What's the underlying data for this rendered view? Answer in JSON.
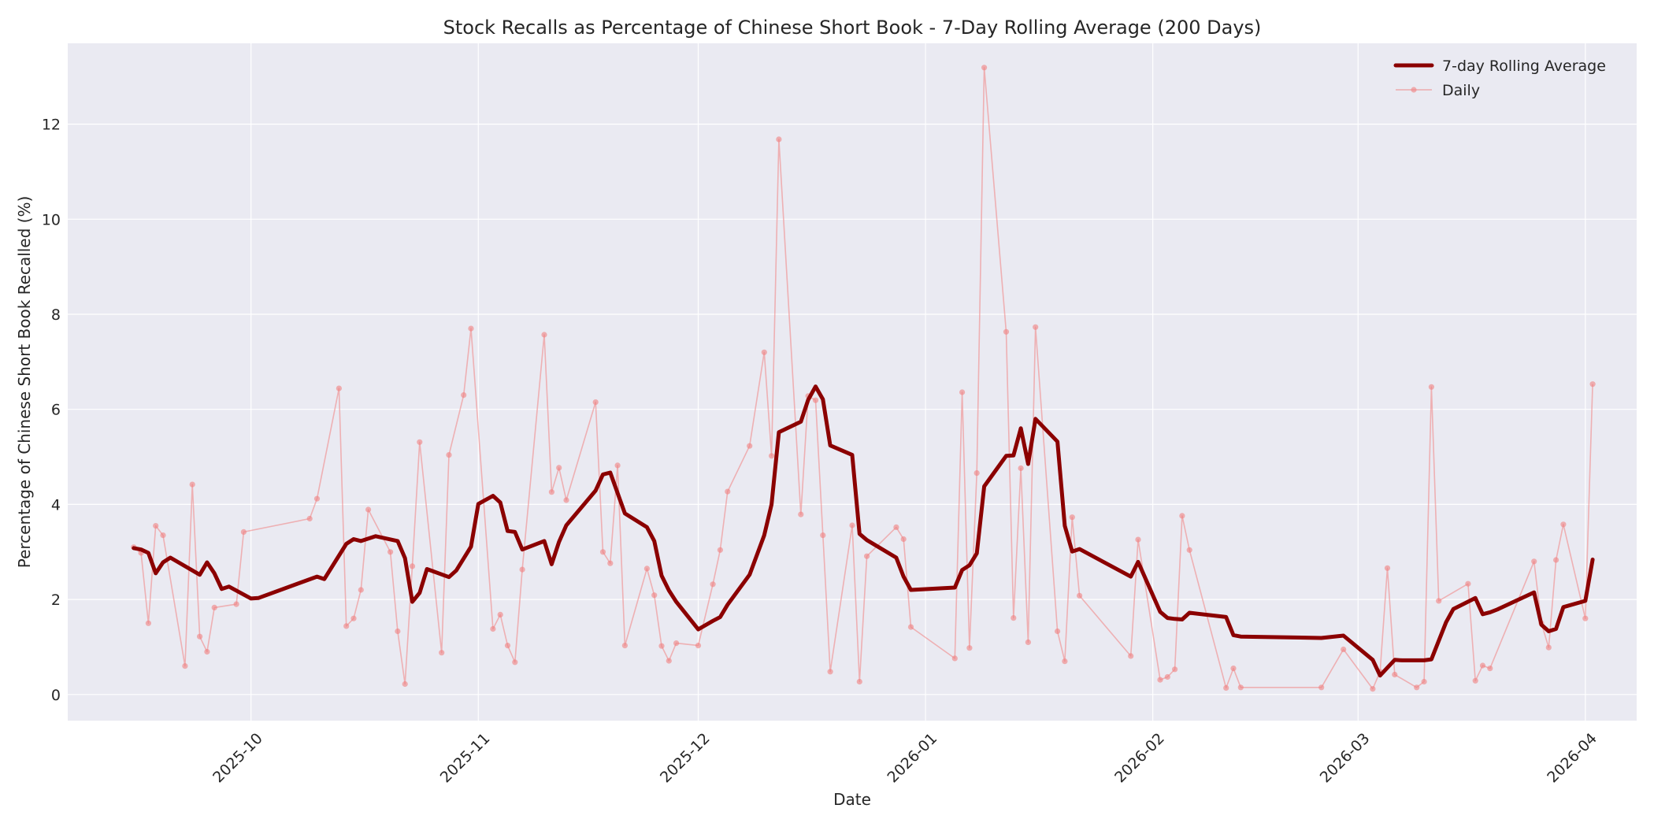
{
  "chart_data": {
    "type": "line",
    "title": "Stock Recalls as Percentage of Chinese Short Book - 7-Day Rolling Average (200 Days)",
    "xlabel": "Date",
    "ylabel": "Percentage of Chinese Short Book Recalled (%)",
    "x_range": [
      "2025-09-06",
      "2026-04-08"
    ],
    "ylim": [
      -0.55,
      13.7
    ],
    "x_ticks": [
      "2025-10",
      "2025-11",
      "2025-12",
      "2026-01",
      "2026-02",
      "2026-03",
      "2026-04"
    ],
    "y_ticks": [
      0,
      2,
      4,
      6,
      8,
      10,
      12
    ],
    "grid": true,
    "legend_position": "top-right",
    "colors": {
      "rolling": "#8b0000",
      "daily": "#f08080",
      "background": "#eaeaf2",
      "grid": "#ffffff"
    },
    "series": [
      {
        "name": "7-day Rolling Average",
        "style": "thick-line",
        "points": [
          [
            "2025-09-15",
            3.08
          ],
          [
            "2025-09-16",
            3.05
          ],
          [
            "2025-09-17",
            2.98
          ],
          [
            "2025-09-18",
            2.55
          ],
          [
            "2025-09-19",
            2.78
          ],
          [
            "2025-09-20",
            2.88
          ],
          [
            "2025-09-24",
            2.52
          ],
          [
            "2025-09-25",
            2.78
          ],
          [
            "2025-09-26",
            2.55
          ],
          [
            "2025-09-27",
            2.22
          ],
          [
            "2025-09-28",
            2.27
          ],
          [
            "2025-10-01",
            2.02
          ],
          [
            "2025-10-02",
            2.03
          ],
          [
            "2025-10-10",
            2.48
          ],
          [
            "2025-10-11",
            2.43
          ],
          [
            "2025-10-14",
            3.17
          ],
          [
            "2025-10-15",
            3.27
          ],
          [
            "2025-10-16",
            3.23
          ],
          [
            "2025-10-18",
            3.33
          ],
          [
            "2025-10-21",
            3.23
          ],
          [
            "2025-10-22",
            2.87
          ],
          [
            "2025-10-23",
            1.95
          ],
          [
            "2025-10-24",
            2.14
          ],
          [
            "2025-10-25",
            2.64
          ],
          [
            "2025-10-28",
            2.47
          ],
          [
            "2025-10-29",
            2.61
          ],
          [
            "2025-10-31",
            3.11
          ],
          [
            "2025-11-01",
            4.01
          ],
          [
            "2025-11-03",
            4.18
          ],
          [
            "2025-11-04",
            4.04
          ],
          [
            "2025-11-05",
            3.44
          ],
          [
            "2025-11-06",
            3.42
          ],
          [
            "2025-11-07",
            3.05
          ],
          [
            "2025-11-10",
            3.23
          ],
          [
            "2025-11-11",
            2.74
          ],
          [
            "2025-11-12",
            3.21
          ],
          [
            "2025-11-13",
            3.56
          ],
          [
            "2025-11-17",
            4.29
          ],
          [
            "2025-11-18",
            4.63
          ],
          [
            "2025-11-19",
            4.67
          ],
          [
            "2025-11-21",
            3.81
          ],
          [
            "2025-11-24",
            3.52
          ],
          [
            "2025-11-25",
            3.23
          ],
          [
            "2025-11-26",
            2.5
          ],
          [
            "2025-11-27",
            2.19
          ],
          [
            "2025-11-28",
            1.95
          ],
          [
            "2025-12-01",
            1.37
          ],
          [
            "2025-12-03",
            1.55
          ],
          [
            "2025-12-04",
            1.63
          ],
          [
            "2025-12-05",
            1.89
          ],
          [
            "2025-12-08",
            2.52
          ],
          [
            "2025-12-10",
            3.35
          ],
          [
            "2025-12-11",
            4.0
          ],
          [
            "2025-12-12",
            5.52
          ],
          [
            "2025-12-15",
            5.74
          ],
          [
            "2025-12-16",
            6.2
          ],
          [
            "2025-12-17",
            6.48
          ],
          [
            "2025-12-18",
            6.21
          ],
          [
            "2025-12-19",
            5.24
          ],
          [
            "2025-12-22",
            5.04
          ],
          [
            "2025-12-23",
            3.38
          ],
          [
            "2025-12-24",
            3.25
          ],
          [
            "2025-12-28",
            2.88
          ],
          [
            "2025-12-29",
            2.48
          ],
          [
            "2025-12-30",
            2.2
          ],
          [
            "2026-01-05",
            2.25
          ],
          [
            "2026-01-06",
            2.62
          ],
          [
            "2026-01-07",
            2.72
          ],
          [
            "2026-01-08",
            2.97
          ],
          [
            "2026-01-09",
            4.38
          ],
          [
            "2026-01-12",
            5.02
          ],
          [
            "2026-01-13",
            5.03
          ],
          [
            "2026-01-14",
            5.6
          ],
          [
            "2026-01-15",
            4.85
          ],
          [
            "2026-01-16",
            5.8
          ],
          [
            "2026-01-19",
            5.32
          ],
          [
            "2026-01-20",
            3.55
          ],
          [
            "2026-01-21",
            3.01
          ],
          [
            "2026-01-22",
            3.06
          ],
          [
            "2026-01-29",
            2.48
          ],
          [
            "2026-01-30",
            2.79
          ],
          [
            "2026-02-02",
            1.74
          ],
          [
            "2026-02-03",
            1.61
          ],
          [
            "2026-02-04",
            1.59
          ],
          [
            "2026-02-05",
            1.58
          ],
          [
            "2026-02-06",
            1.72
          ],
          [
            "2026-02-11",
            1.63
          ],
          [
            "2026-02-12",
            1.25
          ],
          [
            "2026-02-13",
            1.22
          ],
          [
            "2026-02-24",
            1.19
          ],
          [
            "2026-02-27",
            1.24
          ],
          [
            "2026-03-03",
            0.73
          ],
          [
            "2026-03-04",
            0.4
          ],
          [
            "2026-03-06",
            0.73
          ],
          [
            "2026-03-07",
            0.72
          ],
          [
            "2026-03-10",
            0.72
          ],
          [
            "2026-03-11",
            0.74
          ],
          [
            "2026-03-13",
            1.52
          ],
          [
            "2026-03-14",
            1.8
          ],
          [
            "2026-03-17",
            2.03
          ],
          [
            "2026-03-18",
            1.69
          ],
          [
            "2026-03-19",
            1.73
          ],
          [
            "2026-03-20",
            1.79
          ],
          [
            "2026-03-25",
            2.15
          ],
          [
            "2026-03-26",
            1.47
          ],
          [
            "2026-03-27",
            1.33
          ],
          [
            "2026-03-28",
            1.38
          ],
          [
            "2026-03-29",
            1.84
          ],
          [
            "2026-04-01",
            1.97
          ],
          [
            "2026-04-02",
            2.84
          ]
        ]
      },
      {
        "name": "Daily",
        "style": "thin-line-markers",
        "points": [
          [
            "2025-09-15",
            3.1
          ],
          [
            "2025-09-16",
            2.98
          ],
          [
            "2025-09-17",
            1.5
          ],
          [
            "2025-09-18",
            3.55
          ],
          [
            "2025-09-19",
            3.35
          ],
          [
            "2025-09-22",
            0.6
          ],
          [
            "2025-09-23",
            4.42
          ],
          [
            "2025-09-24",
            1.22
          ],
          [
            "2025-09-25",
            0.9
          ],
          [
            "2025-09-26",
            1.83
          ],
          [
            "2025-09-29",
            1.9
          ],
          [
            "2025-09-30",
            3.42
          ],
          [
            "2025-10-09",
            3.7
          ],
          [
            "2025-10-10",
            4.12
          ],
          [
            "2025-10-13",
            6.44
          ],
          [
            "2025-10-14",
            1.44
          ],
          [
            "2025-10-15",
            1.6
          ],
          [
            "2025-10-16",
            2.2
          ],
          [
            "2025-10-17",
            3.89
          ],
          [
            "2025-10-20",
            3.0
          ],
          [
            "2025-10-21",
            1.33
          ],
          [
            "2025-10-22",
            0.22
          ],
          [
            "2025-10-23",
            2.7
          ],
          [
            "2025-10-24",
            5.31
          ],
          [
            "2025-10-27",
            0.88
          ],
          [
            "2025-10-28",
            5.04
          ],
          [
            "2025-10-30",
            6.3
          ],
          [
            "2025-10-31",
            7.7
          ],
          [
            "2025-11-03",
            1.38
          ],
          [
            "2025-11-04",
            1.68
          ],
          [
            "2025-11-05",
            1.03
          ],
          [
            "2025-11-06",
            0.68
          ],
          [
            "2025-11-07",
            2.63
          ],
          [
            "2025-11-10",
            7.57
          ],
          [
            "2025-11-11",
            4.26
          ],
          [
            "2025-11-12",
            4.77
          ],
          [
            "2025-11-13",
            4.09
          ],
          [
            "2025-11-17",
            6.15
          ],
          [
            "2025-11-18",
            3.0
          ],
          [
            "2025-11-19",
            2.76
          ],
          [
            "2025-11-20",
            4.82
          ],
          [
            "2025-11-21",
            1.03
          ],
          [
            "2025-11-24",
            2.65
          ],
          [
            "2025-11-25",
            2.09
          ],
          [
            "2025-11-26",
            1.02
          ],
          [
            "2025-11-27",
            0.71
          ],
          [
            "2025-11-28",
            1.08
          ],
          [
            "2025-12-01",
            1.03
          ],
          [
            "2025-12-03",
            2.32
          ],
          [
            "2025-12-04",
            3.04
          ],
          [
            "2025-12-05",
            4.27
          ],
          [
            "2025-12-08",
            5.23
          ],
          [
            "2025-12-10",
            7.2
          ],
          [
            "2025-12-11",
            5.02
          ],
          [
            "2025-12-12",
            11.68
          ],
          [
            "2025-12-15",
            3.79
          ],
          [
            "2025-12-16",
            6.28
          ],
          [
            "2025-12-17",
            6.19
          ],
          [
            "2025-12-18",
            3.35
          ],
          [
            "2025-12-19",
            0.48
          ],
          [
            "2025-12-22",
            3.56
          ],
          [
            "2025-12-23",
            0.27
          ],
          [
            "2025-12-24",
            2.91
          ],
          [
            "2025-12-28",
            3.52
          ],
          [
            "2025-12-29",
            3.27
          ],
          [
            "2025-12-30",
            1.42
          ],
          [
            "2026-01-05",
            0.76
          ],
          [
            "2026-01-06",
            6.36
          ],
          [
            "2026-01-07",
            0.98
          ],
          [
            "2026-01-08",
            4.66
          ],
          [
            "2026-01-09",
            13.19
          ],
          [
            "2026-01-12",
            7.63
          ],
          [
            "2026-01-13",
            1.61
          ],
          [
            "2026-01-14",
            4.76
          ],
          [
            "2026-01-15",
            1.1
          ],
          [
            "2026-01-16",
            7.73
          ],
          [
            "2026-01-19",
            1.33
          ],
          [
            "2026-01-20",
            0.7
          ],
          [
            "2026-01-21",
            3.73
          ],
          [
            "2026-01-22",
            2.08
          ],
          [
            "2026-01-29",
            0.81
          ],
          [
            "2026-01-30",
            3.26
          ],
          [
            "2026-02-02",
            0.31
          ],
          [
            "2026-02-03",
            0.37
          ],
          [
            "2026-02-04",
            0.53
          ],
          [
            "2026-02-05",
            3.76
          ],
          [
            "2026-02-06",
            3.04
          ],
          [
            "2026-02-11",
            0.14
          ],
          [
            "2026-02-12",
            0.55
          ],
          [
            "2026-02-13",
            0.15
          ],
          [
            "2026-02-24",
            0.15
          ],
          [
            "2026-02-27",
            0.95
          ],
          [
            "2026-03-03",
            0.12
          ],
          [
            "2026-03-04",
            0.48
          ],
          [
            "2026-03-05",
            2.66
          ],
          [
            "2026-03-06",
            0.42
          ],
          [
            "2026-03-09",
            0.15
          ],
          [
            "2026-03-10",
            0.27
          ],
          [
            "2026-03-11",
            6.47
          ],
          [
            "2026-03-12",
            1.97
          ],
          [
            "2026-03-16",
            2.33
          ],
          [
            "2026-03-17",
            0.29
          ],
          [
            "2026-03-18",
            0.61
          ],
          [
            "2026-03-19",
            0.55
          ],
          [
            "2026-03-25",
            2.8
          ],
          [
            "2026-03-26",
            1.5
          ],
          [
            "2026-03-27",
            0.99
          ],
          [
            "2026-03-28",
            2.83
          ],
          [
            "2026-03-29",
            3.58
          ],
          [
            "2026-04-01",
            1.6
          ],
          [
            "2026-04-02",
            6.53
          ]
        ]
      }
    ]
  }
}
